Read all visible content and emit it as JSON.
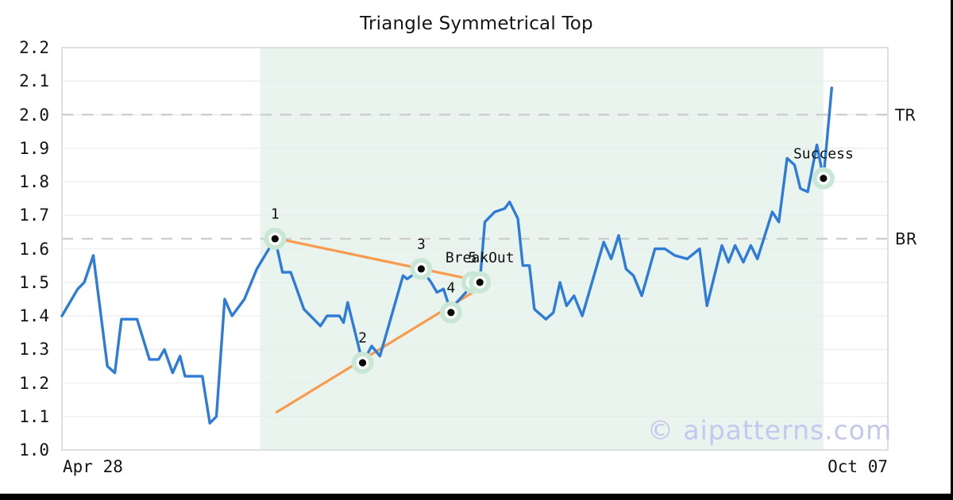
{
  "page": {
    "watermark": "© aipatterns.com"
  },
  "chart_data": {
    "type": "line",
    "title": "Triangle Symmetrical Top",
    "ylim": [
      1.0,
      2.2
    ],
    "grid": true,
    "x_axis_labels": [
      "Apr 28",
      "Oct 07"
    ],
    "y_ticks": [
      "2.2",
      "2.1",
      "2.0",
      "1.9",
      "1.8",
      "1.7",
      "1.6",
      "1.5",
      "1.4",
      "1.3",
      "1.2",
      "1.1",
      "1.0"
    ],
    "colors": {
      "price_line": "#2e7cd8",
      "trendline": "#f89b4d",
      "pattern_zone": "#e9f4ef",
      "marker_halo": "#c9e7d5",
      "grid_line": "#e9edec",
      "dashed_level": "#cbcbcb",
      "watermark": "#c5c7ee"
    },
    "levels": [
      {
        "name": "TR",
        "value": 2.0
      },
      {
        "name": "BR",
        "value": 1.63
      }
    ],
    "pattern_zone": {
      "x1": 0.24,
      "x2": 0.922
    },
    "trendlines": [
      {
        "name": "upper",
        "x1": 0.258,
        "y1": 1.632,
        "x2": 0.513,
        "y2": 1.5
      },
      {
        "name": "lower",
        "x1": 0.26,
        "y1": 1.113,
        "x2": 0.514,
        "y2": 1.495
      }
    ],
    "annotations": [
      {
        "label": "1",
        "x": 0.258,
        "value": 1.63
      },
      {
        "label": "2",
        "x": 0.364,
        "value": 1.26
      },
      {
        "label": "3",
        "x": 0.435,
        "value": 1.54
      },
      {
        "label": "4",
        "x": 0.471,
        "value": 1.41
      },
      {
        "label": "5",
        "x": 0.497,
        "value": 1.5
      },
      {
        "label": "BreakOut",
        "x": 0.506,
        "value": 1.5
      },
      {
        "label": "Success",
        "x": 0.922,
        "value": 1.81
      }
    ],
    "series": [
      {
        "name": "price",
        "points": [
          [
            0.0,
            1.4
          ],
          [
            0.019,
            1.48
          ],
          [
            0.027,
            1.5
          ],
          [
            0.038,
            1.58
          ],
          [
            0.055,
            1.25
          ],
          [
            0.064,
            1.23
          ],
          [
            0.072,
            1.39
          ],
          [
            0.091,
            1.39
          ],
          [
            0.106,
            1.27
          ],
          [
            0.117,
            1.27
          ],
          [
            0.124,
            1.3
          ],
          [
            0.134,
            1.23
          ],
          [
            0.143,
            1.28
          ],
          [
            0.149,
            1.22
          ],
          [
            0.17,
            1.22
          ],
          [
            0.179,
            1.08
          ],
          [
            0.187,
            1.1
          ],
          [
            0.197,
            1.45
          ],
          [
            0.206,
            1.4
          ],
          [
            0.221,
            1.45
          ],
          [
            0.236,
            1.54
          ],
          [
            0.258,
            1.63
          ],
          [
            0.267,
            1.53
          ],
          [
            0.277,
            1.53
          ],
          [
            0.293,
            1.42
          ],
          [
            0.313,
            1.37
          ],
          [
            0.321,
            1.4
          ],
          [
            0.336,
            1.4
          ],
          [
            0.341,
            1.38
          ],
          [
            0.346,
            1.44
          ],
          [
            0.364,
            1.26
          ],
          [
            0.375,
            1.31
          ],
          [
            0.385,
            1.28
          ],
          [
            0.413,
            1.52
          ],
          [
            0.418,
            1.51
          ],
          [
            0.435,
            1.54
          ],
          [
            0.447,
            1.5
          ],
          [
            0.454,
            1.47
          ],
          [
            0.462,
            1.48
          ],
          [
            0.466,
            1.45
          ],
          [
            0.471,
            1.41
          ],
          [
            0.478,
            1.44
          ],
          [
            0.489,
            1.47
          ],
          [
            0.497,
            1.5
          ],
          [
            0.506,
            1.5
          ],
          [
            0.512,
            1.68
          ],
          [
            0.524,
            1.71
          ],
          [
            0.536,
            1.72
          ],
          [
            0.542,
            1.74
          ],
          [
            0.552,
            1.69
          ],
          [
            0.558,
            1.55
          ],
          [
            0.566,
            1.55
          ],
          [
            0.572,
            1.42
          ],
          [
            0.586,
            1.39
          ],
          [
            0.595,
            1.41
          ],
          [
            0.603,
            1.5
          ],
          [
            0.611,
            1.43
          ],
          [
            0.62,
            1.46
          ],
          [
            0.63,
            1.4
          ],
          [
            0.656,
            1.62
          ],
          [
            0.665,
            1.57
          ],
          [
            0.674,
            1.64
          ],
          [
            0.683,
            1.54
          ],
          [
            0.692,
            1.52
          ],
          [
            0.702,
            1.46
          ],
          [
            0.718,
            1.6
          ],
          [
            0.73,
            1.6
          ],
          [
            0.742,
            1.58
          ],
          [
            0.757,
            1.57
          ],
          [
            0.772,
            1.6
          ],
          [
            0.781,
            1.43
          ],
          [
            0.799,
            1.61
          ],
          [
            0.807,
            1.56
          ],
          [
            0.815,
            1.61
          ],
          [
            0.825,
            1.56
          ],
          [
            0.834,
            1.61
          ],
          [
            0.842,
            1.57
          ],
          [
            0.86,
            1.71
          ],
          [
            0.868,
            1.68
          ],
          [
            0.878,
            1.87
          ],
          [
            0.887,
            1.85
          ],
          [
            0.894,
            1.78
          ],
          [
            0.903,
            1.77
          ],
          [
            0.914,
            1.91
          ],
          [
            0.922,
            1.81
          ],
          [
            0.932,
            2.08
          ]
        ]
      }
    ]
  }
}
